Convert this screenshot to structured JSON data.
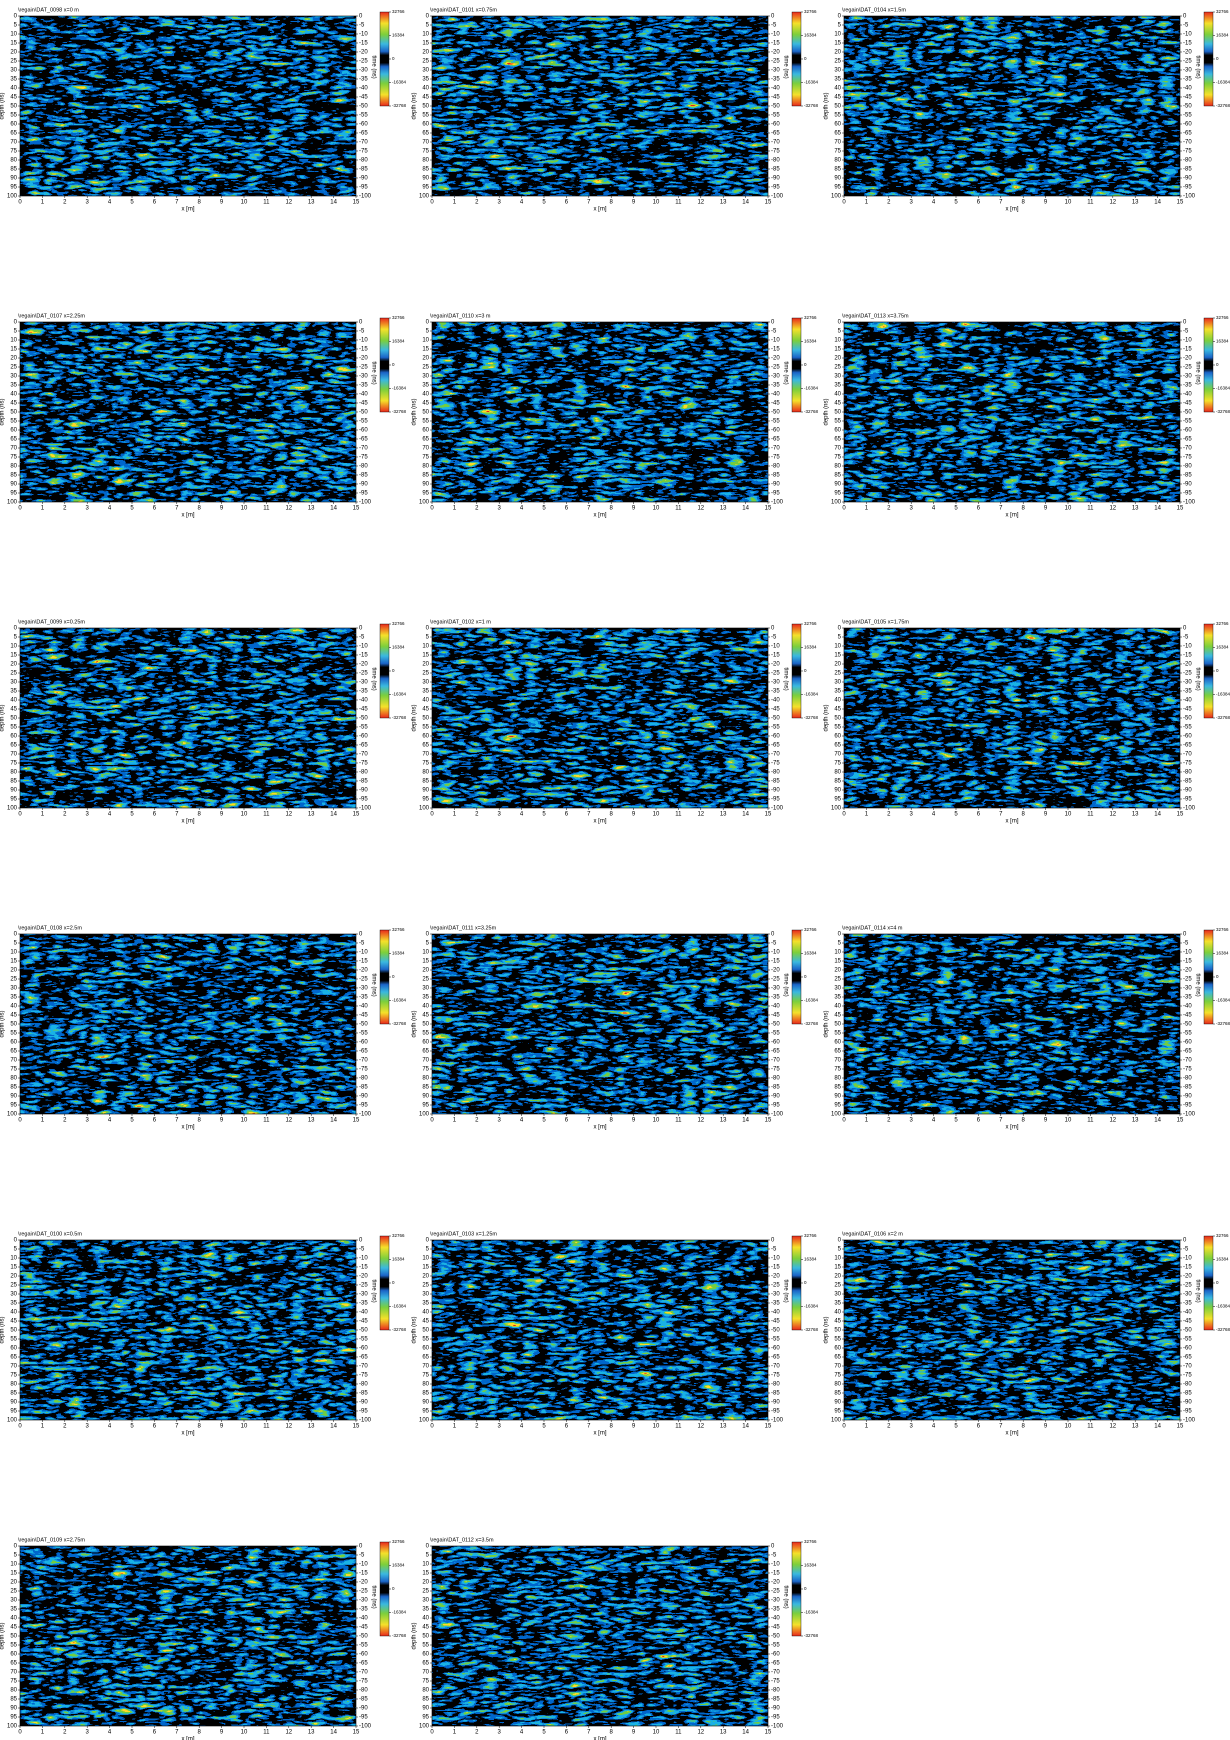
{
  "axes": {
    "xlabel": "x [m]",
    "ylabel": "depth (ns)",
    "y2label": "time (ns)",
    "xlim": [
      0,
      15
    ],
    "xticks": [
      0,
      1,
      2,
      3,
      4,
      5,
      6,
      7,
      8,
      9,
      10,
      11,
      12,
      13,
      14,
      15
    ],
    "ylim": [
      100,
      0
    ],
    "yticks": [
      0,
      5,
      10,
      15,
      20,
      25,
      30,
      35,
      40,
      45,
      50,
      55,
      60,
      65,
      70,
      75,
      80,
      85,
      90,
      95,
      100
    ],
    "y2lim": [
      -100,
      0
    ],
    "y2ticks": [
      0,
      -5,
      -10,
      -15,
      -20,
      -25,
      -30,
      -35,
      -40,
      -45,
      -50,
      -55,
      -60,
      -65,
      -70,
      -75,
      -80,
      -85,
      -90,
      -95,
      -100
    ],
    "clim": [
      -32768,
      32766
    ],
    "cticks": [
      32766,
      16384,
      0,
      -16384,
      -32768
    ]
  },
  "chart_data": [
    {
      "type": "heatmap",
      "title": "\\regain\\DAT_0098   x=0 m"
    },
    {
      "type": "heatmap",
      "title": "\\regain\\DAT_0101   x=0.75m"
    },
    {
      "type": "heatmap",
      "title": "\\regain\\DAT_0104   x=1.5m"
    },
    {
      "type": "heatmap",
      "title": "\\regain\\DAT_0107   x=2.25m"
    },
    {
      "type": "heatmap",
      "title": "\\regain\\DAT_0110   x=3 m"
    },
    {
      "type": "heatmap",
      "title": "\\regain\\DAT_0113   x=3.75m"
    },
    {
      "type": "heatmap",
      "title": "\\regain\\DAT_0099   x=0.25m"
    },
    {
      "type": "heatmap",
      "title": "\\regain\\DAT_0102   x=1 m"
    },
    {
      "type": "heatmap",
      "title": "\\regain\\DAT_0105   x=1.75m"
    },
    {
      "type": "heatmap",
      "title": "\\regain\\DAT_0108   x=2.5m"
    },
    {
      "type": "heatmap",
      "title": "\\regain\\DAT_0111   x=3.25m"
    },
    {
      "type": "heatmap",
      "title": "\\regain\\DAT_0114   x=4 m"
    },
    {
      "type": "heatmap",
      "title": "\\regain\\DAT_0100   x=0.5m"
    },
    {
      "type": "heatmap",
      "title": "\\regain\\DAT_0103   x=1.25m"
    },
    {
      "type": "heatmap",
      "title": "\\regain\\DAT_0106   x=2 m"
    },
    {
      "type": "heatmap",
      "title": "\\regain\\DAT_0109   x=2.75m"
    },
    {
      "type": "heatmap",
      "title": "\\regain\\DAT_0112   x=3.5m"
    }
  ]
}
